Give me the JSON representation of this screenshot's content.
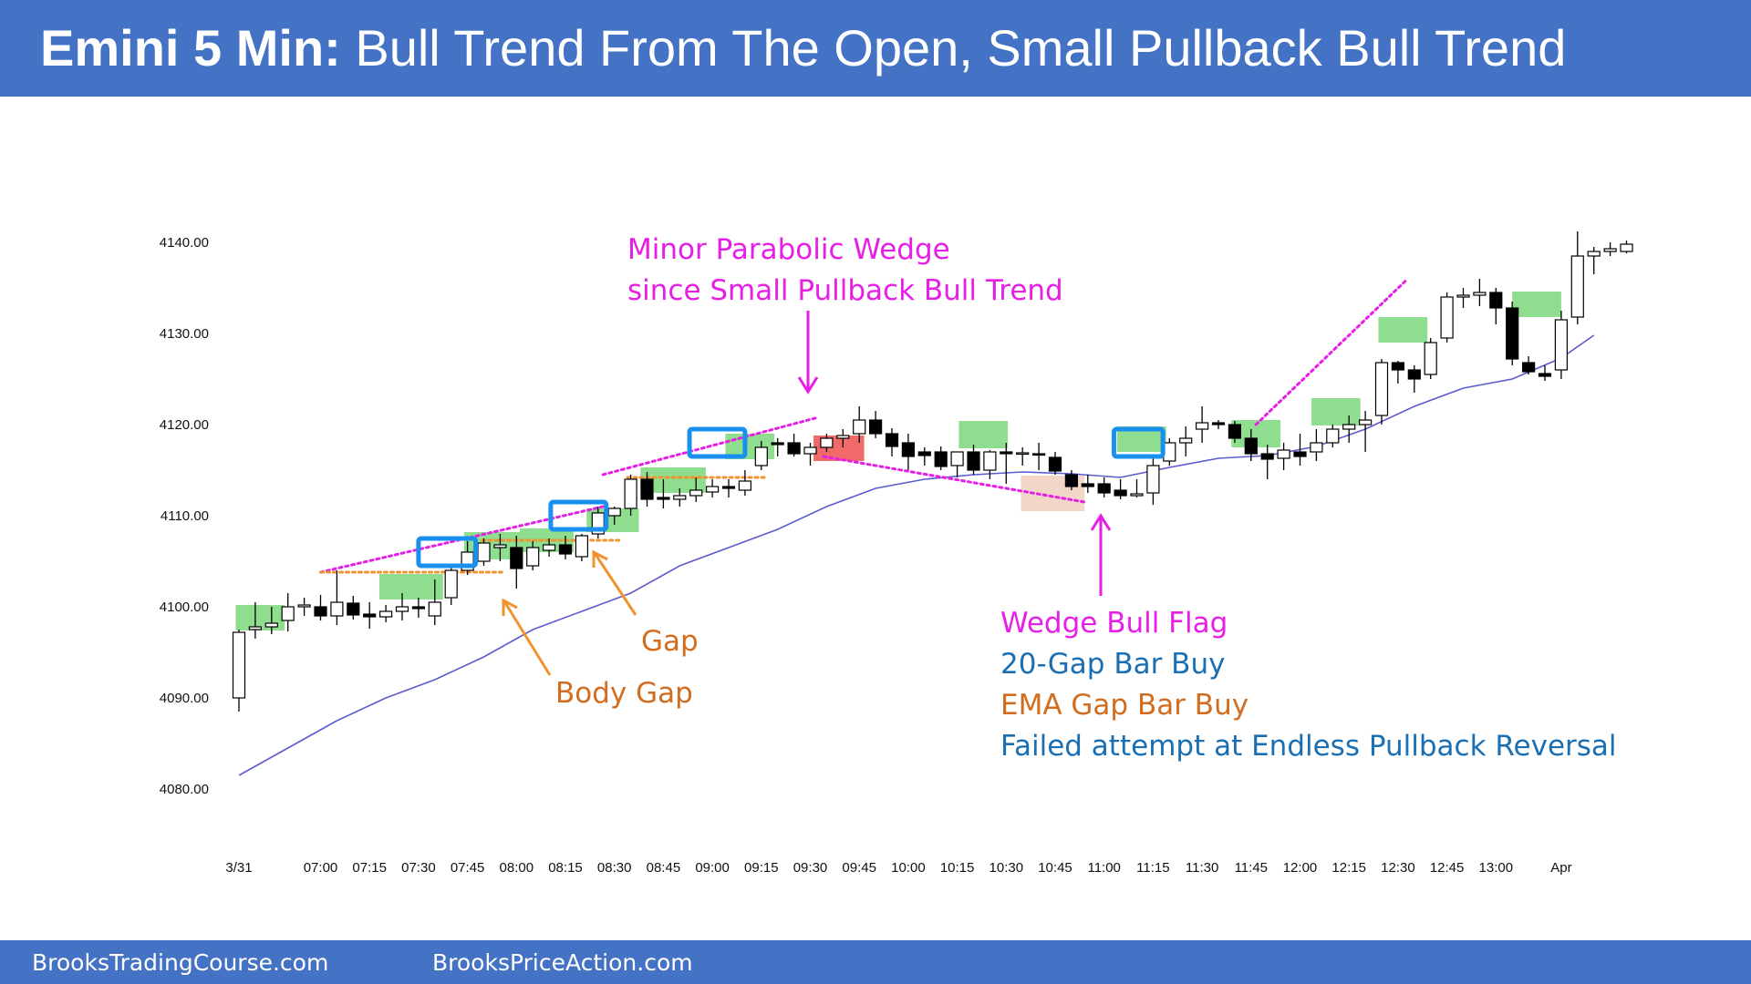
{
  "colors": {
    "header_bg": "#4472c4",
    "magenta": "#e61ee6",
    "orange": "#d26c1e",
    "blue_text": "#1a6fb3",
    "green_box": "#8fdd8f",
    "red_box": "#f06a6a",
    "beige_box": "#f2d6c7",
    "signal_border": "#1a90ee",
    "ema": "#5b5bcf"
  },
  "header": {
    "title_bold": "Emini 5 Min:",
    "title_rest": " Bull Trend From The Open, Small Pullback Bull Trend"
  },
  "footer": {
    "left": "BrooksTradingCourse.com",
    "right": "BrooksPriceAction.com"
  },
  "chart_data": {
    "type": "candlestick",
    "title": "Emini 5 Min: Bull Trend From The Open, Small Pullback Bull Trend",
    "ylim": [
      4078,
      4142
    ],
    "y_ticks": [
      "4140.00",
      "4130.00",
      "4120.00",
      "4110.00",
      "4100.00",
      "4090.00",
      "4080.00"
    ],
    "y_tick_values": [
      4140,
      4130,
      4120,
      4110,
      4100,
      4090,
      4080
    ],
    "x_ticks": [
      "3/31",
      "07:00",
      "07:15",
      "07:30",
      "07:45",
      "08:00",
      "08:15",
      "08:30",
      "08:45",
      "09:00",
      "09:15",
      "09:30",
      "09:45",
      "10:00",
      "10:15",
      "10:30",
      "10:45",
      "11:00",
      "11:15",
      "11:30",
      "11:45",
      "12:00",
      "12:15",
      "12:30",
      "12:45",
      "13:00",
      "Apr"
    ],
    "x_tick_bar_index": [
      0,
      5,
      8,
      11,
      14,
      17,
      20,
      23,
      26,
      29,
      32,
      35,
      38,
      41,
      44,
      47,
      50,
      53,
      56,
      59,
      62,
      65,
      68,
      71,
      74,
      77,
      81
    ],
    "bars": [
      {
        "o": 4090,
        "h": 4097.5,
        "l": 4088.5,
        "c": 4097.2
      },
      {
        "o": 4097.5,
        "h": 4100.5,
        "l": 4096.5,
        "c": 4097.8
      },
      {
        "o": 4097.8,
        "h": 4100.0,
        "l": 4097.0,
        "c": 4098.2
      },
      {
        "o": 4098.5,
        "h": 4101.5,
        "l": 4097.3,
        "c": 4100.0
      },
      {
        "o": 4100.0,
        "h": 4101.0,
        "l": 4099.0,
        "c": 4100.2
      },
      {
        "o": 4100.0,
        "h": 4101.3,
        "l": 4098.5,
        "c": 4099.0
      },
      {
        "o": 4099.0,
        "h": 4104.0,
        "l": 4098.0,
        "c": 4100.5
      },
      {
        "o": 4100.4,
        "h": 4101.2,
        "l": 4098.6,
        "c": 4099.1
      },
      {
        "o": 4099.2,
        "h": 4100.5,
        "l": 4097.6,
        "c": 4098.9
      },
      {
        "o": 4098.9,
        "h": 4100.2,
        "l": 4098.3,
        "c": 4099.5
      },
      {
        "o": 4099.5,
        "h": 4101.5,
        "l": 4098.5,
        "c": 4100.0
      },
      {
        "o": 4100.0,
        "h": 4101.0,
        "l": 4098.8,
        "c": 4099.8
      },
      {
        "o": 4099.0,
        "h": 4103.0,
        "l": 4098.0,
        "c": 4100.5
      },
      {
        "o": 4101.0,
        "h": 4104.5,
        "l": 4100.2,
        "c": 4104.0
      },
      {
        "o": 4104.0,
        "h": 4107.2,
        "l": 4103.5,
        "c": 4106.0
      },
      {
        "o": 4105.0,
        "h": 4107.5,
        "l": 4104.5,
        "c": 4107.0
      },
      {
        "o": 4106.5,
        "h": 4108.0,
        "l": 4105.0,
        "c": 4106.8
      },
      {
        "o": 4106.5,
        "h": 4107.8,
        "l": 4102.0,
        "c": 4104.2
      },
      {
        "o": 4104.5,
        "h": 4107.2,
        "l": 4104.0,
        "c": 4106.5
      },
      {
        "o": 4106.2,
        "h": 4107.5,
        "l": 4105.5,
        "c": 4106.8
      },
      {
        "o": 4106.8,
        "h": 4107.8,
        "l": 4105.2,
        "c": 4105.8
      },
      {
        "o": 4105.5,
        "h": 4108.0,
        "l": 4105.0,
        "c": 4107.8
      },
      {
        "o": 4108.0,
        "h": 4111.0,
        "l": 4107.5,
        "c": 4110.3
      },
      {
        "o": 4110.0,
        "h": 4111.0,
        "l": 4109.0,
        "c": 4110.8
      },
      {
        "o": 4110.8,
        "h": 4114.5,
        "l": 4110.0,
        "c": 4114.0
      },
      {
        "o": 4114.0,
        "h": 4114.8,
        "l": 4111.0,
        "c": 4111.8
      },
      {
        "o": 4112.0,
        "h": 4114.0,
        "l": 4110.8,
        "c": 4111.8
      },
      {
        "o": 4111.8,
        "h": 4113.0,
        "l": 4111.0,
        "c": 4112.2
      },
      {
        "o": 4112.2,
        "h": 4114.2,
        "l": 4111.5,
        "c": 4112.8
      },
      {
        "o": 4112.6,
        "h": 4114.0,
        "l": 4112.0,
        "c": 4113.2
      },
      {
        "o": 4113.2,
        "h": 4114.0,
        "l": 4112.0,
        "c": 4113.0
      },
      {
        "o": 4112.8,
        "h": 4115.0,
        "l": 4112.2,
        "c": 4113.8
      },
      {
        "o": 4115.5,
        "h": 4118.2,
        "l": 4115.0,
        "c": 4117.5
      },
      {
        "o": 4118.0,
        "h": 4118.5,
        "l": 4116.5,
        "c": 4117.8
      },
      {
        "o": 4118.0,
        "h": 4119.0,
        "l": 4116.5,
        "c": 4116.8
      },
      {
        "o": 4116.8,
        "h": 4118.0,
        "l": 4115.5,
        "c": 4117.5
      },
      {
        "o": 4117.5,
        "h": 4119.0,
        "l": 4117.0,
        "c": 4118.5
      },
      {
        "o": 4118.5,
        "h": 4119.5,
        "l": 4117.5,
        "c": 4118.8
      },
      {
        "o": 4119.0,
        "h": 4122.0,
        "l": 4118.0,
        "c": 4120.5
      },
      {
        "o": 4120.5,
        "h": 4121.5,
        "l": 4118.5,
        "c": 4119.0
      },
      {
        "o": 4119.0,
        "h": 4119.6,
        "l": 4116.5,
        "c": 4117.6
      },
      {
        "o": 4118.0,
        "h": 4119.0,
        "l": 4115.0,
        "c": 4116.5
      },
      {
        "o": 4117.0,
        "h": 4117.5,
        "l": 4115.5,
        "c": 4116.6
      },
      {
        "o": 4117.0,
        "h": 4117.6,
        "l": 4115.0,
        "c": 4115.4
      },
      {
        "o": 4115.5,
        "h": 4117.0,
        "l": 4114.2,
        "c": 4117.0
      },
      {
        "o": 4117.0,
        "h": 4117.8,
        "l": 4114.5,
        "c": 4115.0
      },
      {
        "o": 4115.0,
        "h": 4117.2,
        "l": 4114.0,
        "c": 4117.0
      },
      {
        "o": 4117.0,
        "h": 4118.0,
        "l": 4113.5,
        "c": 4116.8
      },
      {
        "o": 4116.8,
        "h": 4117.5,
        "l": 4115.5,
        "c": 4116.9
      },
      {
        "o": 4116.8,
        "h": 4118.0,
        "l": 4115.0,
        "c": 4116.7
      },
      {
        "o": 4116.4,
        "h": 4117.0,
        "l": 4114.5,
        "c": 4114.9
      },
      {
        "o": 4114.5,
        "h": 4115.0,
        "l": 4112.8,
        "c": 4113.2
      },
      {
        "o": 4113.5,
        "h": 4114.5,
        "l": 4112.5,
        "c": 4113.2
      },
      {
        "o": 4113.5,
        "h": 4114.2,
        "l": 4112.0,
        "c": 4112.5
      },
      {
        "o": 4112.8,
        "h": 4114.0,
        "l": 4111.8,
        "c": 4112.2
      },
      {
        "o": 4112.2,
        "h": 4114.0,
        "l": 4112.0,
        "c": 4112.4
      },
      {
        "o": 4112.5,
        "h": 4116.5,
        "l": 4111.2,
        "c": 4115.5
      },
      {
        "o": 4116.0,
        "h": 4118.5,
        "l": 4115.5,
        "c": 4118.0
      },
      {
        "o": 4118.0,
        "h": 4119.8,
        "l": 4116.5,
        "c": 4118.5
      },
      {
        "o": 4119.5,
        "h": 4122.0,
        "l": 4118.0,
        "c": 4120.2
      },
      {
        "o": 4120.2,
        "h": 4120.5,
        "l": 4119.5,
        "c": 4120.0
      },
      {
        "o": 4120.0,
        "h": 4120.4,
        "l": 4118.0,
        "c": 4118.5
      },
      {
        "o": 4118.5,
        "h": 4119.5,
        "l": 4116.0,
        "c": 4116.8
      },
      {
        "o": 4116.8,
        "h": 4117.8,
        "l": 4114.0,
        "c": 4116.2
      },
      {
        "o": 4116.3,
        "h": 4118.0,
        "l": 4115.0,
        "c": 4117.2
      },
      {
        "o": 4117.0,
        "h": 4119.0,
        "l": 4115.5,
        "c": 4116.5
      },
      {
        "o": 4117.0,
        "h": 4119.5,
        "l": 4116.0,
        "c": 4118.0
      },
      {
        "o": 4118.0,
        "h": 4120.0,
        "l": 4117.5,
        "c": 4119.5
      },
      {
        "o": 4119.5,
        "h": 4121.0,
        "l": 4118.0,
        "c": 4120.0
      },
      {
        "o": 4120.0,
        "h": 4121.5,
        "l": 4117.0,
        "c": 4120.5
      },
      {
        "o": 4121.0,
        "h": 4127.2,
        "l": 4120.0,
        "c": 4126.8
      },
      {
        "o": 4126.8,
        "h": 4127.0,
        "l": 4124.5,
        "c": 4126.0
      },
      {
        "o": 4126.0,
        "h": 4126.5,
        "l": 4123.5,
        "c": 4125.0
      },
      {
        "o": 4125.5,
        "h": 4129.5,
        "l": 4125.0,
        "c": 4129.0
      },
      {
        "o": 4129.5,
        "h": 4134.5,
        "l": 4129.0,
        "c": 4134.0
      },
      {
        "o": 4134.0,
        "h": 4135.0,
        "l": 4132.8,
        "c": 4134.2
      },
      {
        "o": 4134.2,
        "h": 4136.0,
        "l": 4133.0,
        "c": 4134.5
      },
      {
        "o": 4134.5,
        "h": 4135.0,
        "l": 4131.0,
        "c": 4132.8
      },
      {
        "o": 4132.8,
        "h": 4133.5,
        "l": 4126.5,
        "c": 4127.2
      },
      {
        "o": 4126.8,
        "h": 4127.5,
        "l": 4125.5,
        "c": 4125.8
      },
      {
        "o": 4125.6,
        "h": 4126.5,
        "l": 4124.8,
        "c": 4125.3
      },
      {
        "o": 4126.0,
        "h": 4132.5,
        "l": 4125.0,
        "c": 4131.5
      },
      {
        "o": 4131.8,
        "h": 4141.2,
        "l": 4131.0,
        "c": 4138.5
      },
      {
        "o": 4138.5,
        "h": 4139.5,
        "l": 4136.5,
        "c": 4139.0
      },
      {
        "o": 4139.0,
        "h": 4140.0,
        "l": 4138.5,
        "c": 4139.3
      },
      {
        "o": 4139.0,
        "h": 4140.2,
        "l": 4138.8,
        "c": 4139.8
      }
    ],
    "ema_20": [
      [
        0,
        4081.5
      ],
      [
        3,
        4084.5
      ],
      [
        6,
        4087.5
      ],
      [
        9,
        4090.0
      ],
      [
        12,
        4092.0
      ],
      [
        15,
        4094.5
      ],
      [
        18,
        4097.5
      ],
      [
        21,
        4099.5
      ],
      [
        24,
        4101.5
      ],
      [
        27,
        4104.5
      ],
      [
        30,
        4106.5
      ],
      [
        33,
        4108.5
      ],
      [
        36,
        4111.0
      ],
      [
        39,
        4113.0
      ],
      [
        42,
        4114.0
      ],
      [
        45,
        4114.5
      ],
      [
        48,
        4114.8
      ],
      [
        51,
        4114.6
      ],
      [
        54,
        4114.2
      ],
      [
        57,
        4115.3
      ],
      [
        60,
        4116.3
      ],
      [
        63,
        4116.6
      ],
      [
        66,
        4117.6
      ],
      [
        69,
        4119.5
      ],
      [
        72,
        4122.0
      ],
      [
        75,
        4124.0
      ],
      [
        78,
        4125.0
      ],
      [
        81,
        4127.3
      ],
      [
        83,
        4129.8
      ]
    ],
    "green_zones": [
      {
        "x0": -0.2,
        "x1": 2.8,
        "y0": 4097.4,
        "y1": 4100.2
      },
      {
        "x0": 8.6,
        "x1": 12.5,
        "y0": 4100.8,
        "y1": 4103.6
      },
      {
        "x0": 13.8,
        "x1": 17.3,
        "y0": 4105.2,
        "y1": 4108.2
      },
      {
        "x0": 17.2,
        "x1": 20.5,
        "y0": 4106.0,
        "y1": 4108.6
      },
      {
        "x0": 21.3,
        "x1": 24.5,
        "y0": 4108.2,
        "y1": 4110.8
      },
      {
        "x0": 24.6,
        "x1": 28.6,
        "y0": 4112.5,
        "y1": 4115.3
      },
      {
        "x0": 29.8,
        "x1": 32.8,
        "y0": 4116.2,
        "y1": 4119.0
      },
      {
        "x0": 44.1,
        "x1": 47.1,
        "y0": 4117.4,
        "y1": 4120.4
      },
      {
        "x0": 53.8,
        "x1": 56.8,
        "y0": 4117.0,
        "y1": 4119.8
      },
      {
        "x0": 60.8,
        "x1": 63.8,
        "y0": 4117.5,
        "y1": 4120.5
      },
      {
        "x0": 65.7,
        "x1": 68.7,
        "y0": 4119.9,
        "y1": 4122.9
      },
      {
        "x0": 69.8,
        "x1": 72.8,
        "y0": 4129.0,
        "y1": 4131.8
      },
      {
        "x0": 78.0,
        "x1": 81.0,
        "y0": 4131.8,
        "y1": 4134.6
      }
    ],
    "red_zones": [
      {
        "x0": 35.2,
        "x1": 38.3,
        "y0": 4116.0,
        "y1": 4118.8
      }
    ],
    "beige_zones": [
      {
        "x0": 47.9,
        "x1": 51.8,
        "y0": 4110.5,
        "y1": 4114.4
      }
    ],
    "signal_boxes": [
      {
        "x0": 11.0,
        "x1": 14.5,
        "y0": 4104.5,
        "y1": 4107.5
      },
      {
        "x0": 19.1,
        "x1": 22.5,
        "y0": 4108.5,
        "y1": 4111.5
      },
      {
        "x0": 27.6,
        "x1": 31.0,
        "y0": 4116.5,
        "y1": 4119.5
      },
      {
        "x0": 53.6,
        "x1": 56.6,
        "y0": 4116.5,
        "y1": 4119.5
      }
    ],
    "dotted_lines": [
      {
        "color": "magenta",
        "x0": 5.0,
        "y0": 4103.8,
        "x1": 22.3,
        "y1": 4111.0
      },
      {
        "color": "magenta",
        "x0": 22.3,
        "y0": 4114.5,
        "x1": 35.5,
        "y1": 4120.8
      },
      {
        "color": "magenta",
        "x0": 35.8,
        "y0": 4116.5,
        "x1": 51.8,
        "y1": 4111.5
      },
      {
        "color": "magenta",
        "x0": 62.3,
        "y0": 4120.0,
        "x1": 71.6,
        "y1": 4136.0
      },
      {
        "color": "orange",
        "x0": 5.0,
        "y0": 4103.8,
        "x1": 16.1,
        "y1": 4103.8
      },
      {
        "color": "orange",
        "x0": 14.9,
        "y0": 4107.3,
        "x1": 23.3,
        "y1": 4107.3
      },
      {
        "color": "orange",
        "x0": 23.8,
        "y0": 4114.2,
        "x1": 32.2,
        "y1": 4114.2
      }
    ],
    "annotations": {
      "parabolic_line1": "Minor Parabolic Wedge",
      "parabolic_line2": "since Small Pullback Bull Trend",
      "gap": "Gap",
      "body_gap": "Body Gap",
      "wedge_bull_flag": "Wedge Bull Flag",
      "gap_bar_buy": "20-Gap Bar Buy",
      "ema_gap_bar_buy": "EMA Gap Bar Buy",
      "failed_attempt": "Failed attempt at Endless Pullback Reversal"
    }
  }
}
